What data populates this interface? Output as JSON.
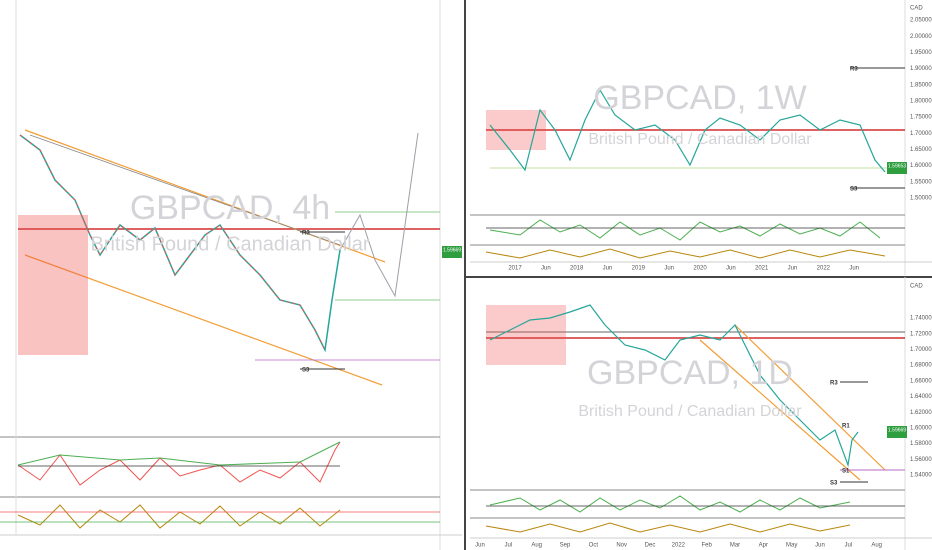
{
  "panels": [
    {
      "symbol": "GBPCAD, 4h",
      "description": "British Pound / Canadian Dollar",
      "price_tag": "1.59669",
      "levels": [
        "R3",
        "S3"
      ]
    },
    {
      "symbol": "GBPCAD, 1W",
      "description": "British Pound / Canadian Dollar",
      "currency": "CAD",
      "price_tag": "1.59653",
      "time_labels": [
        "2017",
        "Jun",
        "2018",
        "Jun",
        "2019",
        "Jun",
        "2020",
        "Jun",
        "2021",
        "Jun",
        "2022",
        "Jun"
      ],
      "price_labels": [
        "2.05000",
        "2.00000",
        "1.95000",
        "1.90000",
        "1.85000",
        "1.80000",
        "1.75000",
        "1.70000",
        "1.65000",
        "1.60000",
        "1.55000",
        "1.50000"
      ],
      "levels": [
        "R3",
        "S3"
      ]
    },
    {
      "symbol": "GBPCAD, 1D",
      "description": "British Pound / Canadian Dollar",
      "currency": "CAD",
      "price_tag": "1.59669",
      "time_labels": [
        "Jun",
        "Jul",
        "Aug",
        "Sep",
        "Oct",
        "Nov",
        "Dec",
        "2022",
        "Feb",
        "Mar",
        "Apr",
        "May",
        "Jun",
        "Jul",
        "Aug"
      ],
      "price_labels": [
        "1.74000",
        "1.72000",
        "1.70000",
        "1.68000",
        "1.66000",
        "1.64000",
        "1.62000",
        "1.60000",
        "1.58000",
        "1.56000",
        "1.54000"
      ],
      "levels": [
        "R3",
        "R1",
        "S1",
        "S3"
      ]
    }
  ]
}
